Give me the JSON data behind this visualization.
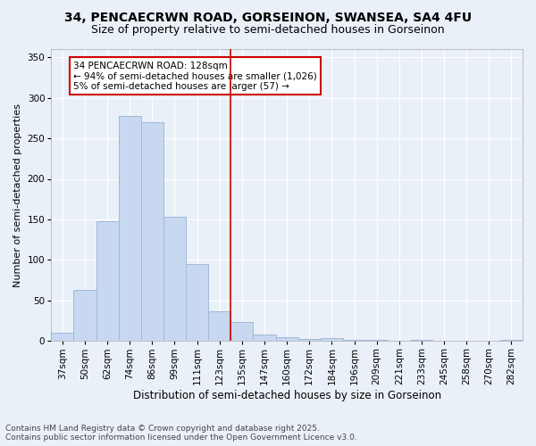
{
  "title1": "34, PENCAECRWN ROAD, GORSEINON, SWANSEA, SA4 4FU",
  "title2": "Size of property relative to semi-detached houses in Gorseinon",
  "xlabel": "Distribution of semi-detached houses by size in Gorseinon",
  "ylabel": "Number of semi-detached properties",
  "categories": [
    "37sqm",
    "50sqm",
    "62sqm",
    "74sqm",
    "86sqm",
    "99sqm",
    "111sqm",
    "123sqm",
    "135sqm",
    "147sqm",
    "160sqm",
    "172sqm",
    "184sqm",
    "196sqm",
    "209sqm",
    "221sqm",
    "233sqm",
    "245sqm",
    "258sqm",
    "270sqm",
    "282sqm"
  ],
  "values": [
    10,
    63,
    148,
    278,
    270,
    153,
    95,
    37,
    24,
    8,
    5,
    3,
    4,
    2,
    2,
    0,
    2,
    0,
    0,
    0,
    2
  ],
  "bar_color": "#c8d8f0",
  "bar_edge_color": "#a0b8d8",
  "vline_color": "#cc0000",
  "vline_x": 7.5,
  "annotation_text": "34 PENCAECRWN ROAD: 128sqm\n← 94% of semi-detached houses are smaller (1,026)\n5% of semi-detached houses are larger (57) →",
  "annotation_box_color": "#ffffff",
  "annotation_box_edge": "#cc0000",
  "ylim": [
    0,
    360
  ],
  "yticks": [
    0,
    50,
    100,
    150,
    200,
    250,
    300,
    350
  ],
  "background_color": "#eaf0f8",
  "footer_text": "Contains HM Land Registry data © Crown copyright and database right 2025.\nContains public sector information licensed under the Open Government Licence v3.0.",
  "title1_fontsize": 10,
  "title2_fontsize": 9,
  "xlabel_fontsize": 8.5,
  "ylabel_fontsize": 8,
  "annotation_fontsize": 7.5,
  "footer_fontsize": 6.5,
  "tick_fontsize": 7.5
}
